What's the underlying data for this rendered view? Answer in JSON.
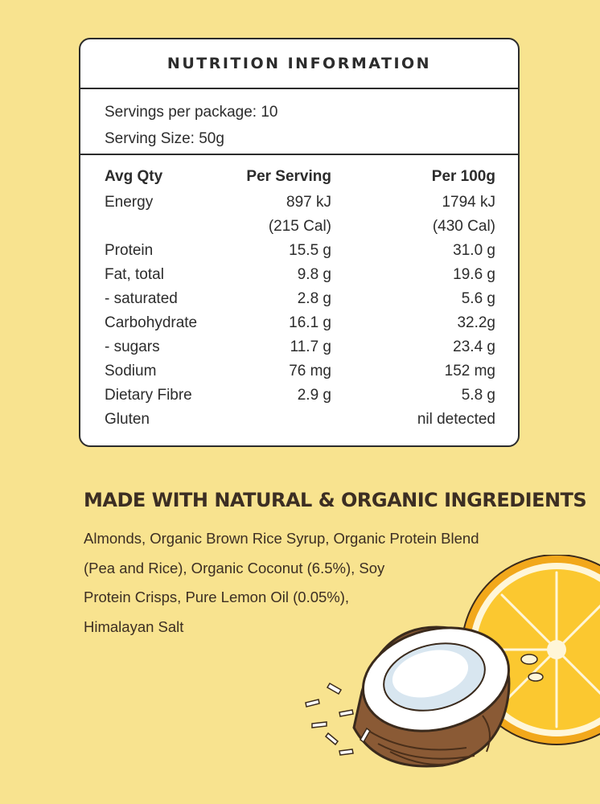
{
  "panel": {
    "title": "NUTRITION INFORMATION",
    "servings_per_package": "Servings per package: 10",
    "serving_size": "Serving Size: 50g",
    "headers": [
      "Avg Qty",
      "Per Serving",
      "Per 100g"
    ],
    "rows": [
      {
        "name": "Energy",
        "per_serving": "897 kJ",
        "per_100g": "1794 kJ"
      },
      {
        "name": "",
        "per_serving": "(215 Cal)",
        "per_100g": "(430 Cal)"
      },
      {
        "name": "Protein",
        "per_serving": "15.5 g",
        "per_100g": "31.0 g"
      },
      {
        "name": "Fat, total",
        "per_serving": "9.8 g",
        "per_100g": "19.6 g"
      },
      {
        "name": "- saturated",
        "per_serving": "2.8 g",
        "per_100g": "5.6 g"
      },
      {
        "name": "Carbohydrate",
        "per_serving": "16.1 g",
        "per_100g": "32.2g"
      },
      {
        "name": "- sugars",
        "per_serving": "11.7 g",
        "per_100g": "23.4 g"
      },
      {
        "name": "Sodium",
        "per_serving": "76 mg",
        "per_100g": "152 mg"
      },
      {
        "name": "Dietary Fibre",
        "per_serving": "2.9 g",
        "per_100g": "5.8 g"
      },
      {
        "name": "Gluten",
        "per_serving": "",
        "per_100g": "nil detected"
      }
    ]
  },
  "ingredients": {
    "heading": "MADE WITH NATURAL & ORGANIC INGREDIENTS",
    "lines": [
      "Almonds, Organic Brown Rice Syrup, Organic Protein Blend",
      "(Pea and Rice), Organic Coconut (6.5%), Soy",
      "Protein Crisps, Pure Lemon Oil (0.05%),",
      "Himalayan Salt"
    ]
  },
  "colors": {
    "background": "#f8e38f",
    "panel": "#ffffff",
    "border": "#2c2c2c",
    "heading_text": "#3c2e23",
    "lemon": "#f7c21e",
    "coconut_shell": "#8a5a35"
  },
  "illustrations": [
    "lemon-slice-illustration",
    "coconut-illustration",
    "coconut-flakes-illustration"
  ]
}
